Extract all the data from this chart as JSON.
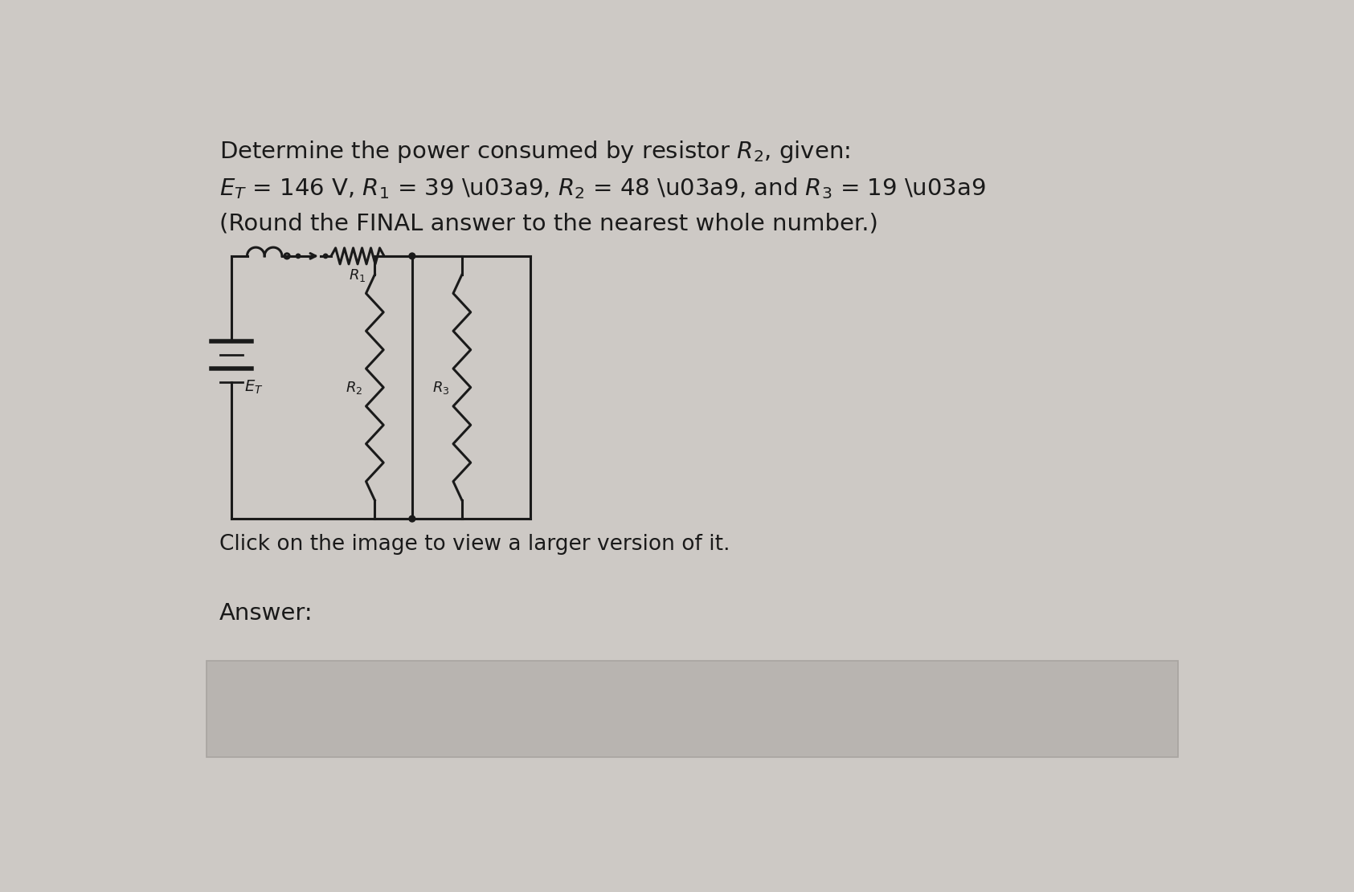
{
  "line1_pre": "Determine the power consumed by resistor ",
  "line1_R2": "$R_{2}$",
  "line1_post": ", given:",
  "line2": "$E_{T}$ = 146 V, $R_{1}$ = 39 Ω, $R_{2}$ = 48 Ω, and $R_{3}$ = 19 Ω",
  "line3": "(Round the FINAL answer to the nearest whole number.)",
  "click_text": "Click on the image to view a larger version of it.",
  "answer_label": "Answer:",
  "bg_color": "#cdc9c5",
  "text_color": "#1a1a1a",
  "circuit_color": "#1a1a1a",
  "answer_box_color": "#b8b4b0",
  "answer_box_border": "#a8a4a0",
  "font_size_main": 21,
  "font_size_click": 19
}
